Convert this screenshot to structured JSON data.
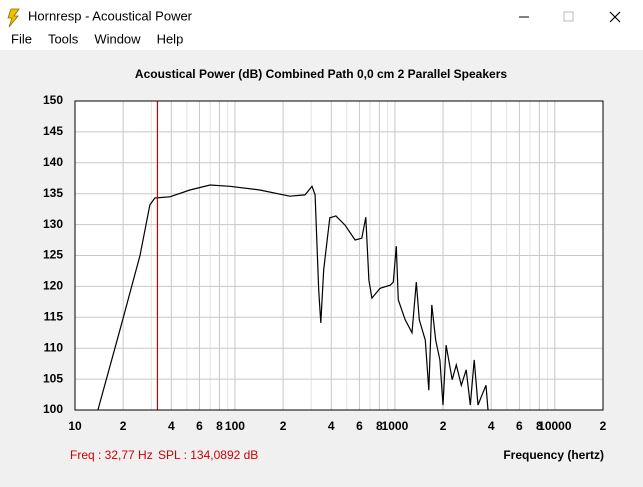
{
  "window": {
    "title": "Hornresp - Acoustical Power",
    "menu": [
      "File",
      "Tools",
      "Window",
      "Help"
    ]
  },
  "chart_data": {
    "type": "line",
    "title": "Acoustical Power (dB)   Combined   Path 0,0 cm   2 Parallel Speakers",
    "x_label": "Frequency (hertz)",
    "x": [
      13.9,
      19.1,
      25.5,
      29.4,
      31.6,
      39.2,
      52.3,
      69.9,
      93.1,
      143,
      220,
      274,
      303,
      317,
      334,
      344,
      359,
      392,
      428,
      488,
      564,
      621,
      658,
      688,
      718,
      808,
      935,
      977,
      1020,
      1050,
      1160,
      1280,
      1360,
      1420,
      1550,
      1630,
      1700,
      1800,
      1910,
      2000,
      2090,
      2280,
      2420,
      2600,
      2790,
      2960,
      3130,
      3310,
      3500,
      3710,
      3820
    ],
    "values": [
      100,
      113,
      125,
      133.2,
      134.3,
      134.5,
      135.6,
      136.4,
      136.2,
      135.6,
      134.6,
      134.8,
      136.2,
      134.8,
      119.4,
      114.1,
      122.7,
      131.1,
      131.4,
      129.9,
      127.5,
      127.8,
      131.2,
      121,
      118.1,
      119.7,
      120.2,
      120.7,
      126.5,
      117.8,
      114.6,
      112.5,
      120.7,
      114.6,
      111.3,
      103.2,
      117,
      111.3,
      108.1,
      100.8,
      110.5,
      104.9,
      107.3,
      104,
      106.5,
      100.8,
      108.1,
      100.8,
      102.4,
      104,
      100
    ],
    "color": "#000000",
    "x_log": true,
    "xlim": [
      10,
      20000
    ],
    "xticks": [
      10,
      {
        "value": 20,
        "label": "2"
      },
      {
        "value": 40,
        "label": "4"
      },
      {
        "value": 60,
        "label": "6"
      },
      {
        "value": 80,
        "label": "8"
      },
      100,
      {
        "value": 200,
        "label": "2"
      },
      {
        "value": 400,
        "label": "4"
      },
      {
        "value": 600,
        "label": "6"
      },
      {
        "value": 800,
        "label": "8"
      },
      1000,
      {
        "value": 2000,
        "label": "2"
      },
      {
        "value": 4000,
        "label": "4"
      },
      {
        "value": 6000,
        "label": "6"
      },
      {
        "value": 8000,
        "label": "8"
      },
      10000,
      {
        "value": 20000,
        "label": "2"
      }
    ],
    "x_minor_ticks": [
      30,
      50,
      70,
      90,
      300,
      500,
      700,
      900,
      3000,
      5000,
      7000,
      9000
    ],
    "ylim": [
      100,
      150
    ],
    "yticks": [
      100,
      105,
      110,
      115,
      120,
      125,
      130,
      135,
      140,
      145,
      150
    ],
    "grid": true,
    "cursor": {
      "value": 32.77,
      "color": "#cc0000"
    },
    "freq_readout": "Freq : 32,77 Hz",
    "spl_readout": "SPL : 134,0892 dB"
  }
}
